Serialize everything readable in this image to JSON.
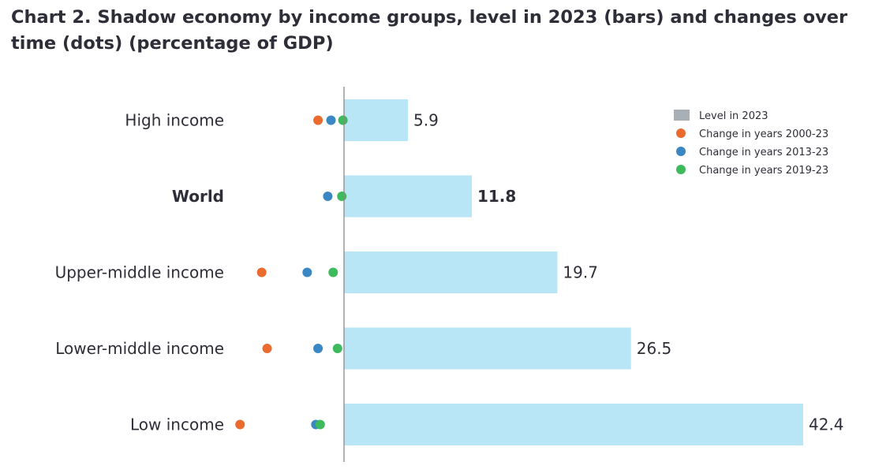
{
  "chart_data": {
    "type": "bar",
    "orientation": "horizontal",
    "title": "Chart 2. Shadow economy by income groups, level in 2023 (bars) and changes over time (dots) (percentage of GDP)",
    "categories": [
      "High income",
      "World",
      "Upper-middle income",
      "Lower-middle income",
      "Low income"
    ],
    "bold_categories": [
      "World"
    ],
    "bar_series": {
      "name": "Level in 2023",
      "values": [
        5.9,
        11.8,
        19.7,
        26.5,
        42.4
      ],
      "value_labels": [
        "5.9",
        "11.8",
        "19.7",
        "26.5",
        "42.4"
      ]
    },
    "dot_series": [
      {
        "name": "Change in years 2000-23",
        "values": [
          -2.4,
          null,
          -7.6,
          -7.1,
          -9.6
        ]
      },
      {
        "name": "Change in years 2013-23",
        "values": [
          -1.2,
          -1.5,
          -3.4,
          -2.4,
          -2.6
        ]
      },
      {
        "name": "Change in years 2019-23",
        "values": [
          -0.1,
          -0.2,
          -1.0,
          -0.6,
          -2.2
        ]
      }
    ],
    "xlim": [
      -10,
      42.4
    ],
    "legend_position": "top-right",
    "colors": {
      "bar": "#b8e6f7",
      "axis": "#8a8a8a",
      "legend_bar": "#a8b0b5",
      "series": [
        "#ea6b2d",
        "#3b87c4",
        "#3dba5c"
      ]
    }
  }
}
